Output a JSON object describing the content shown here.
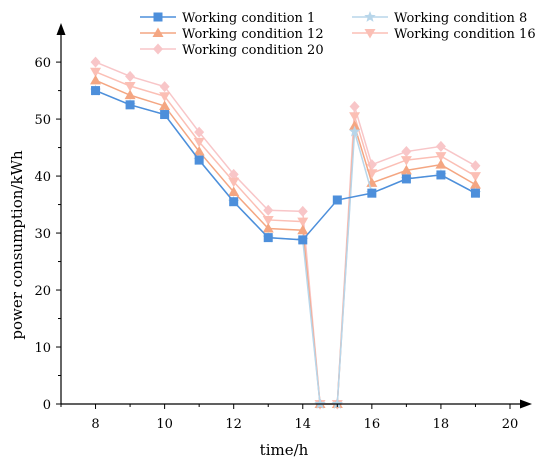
{
  "chart_data": {
    "type": "line",
    "xlabel": "time/h",
    "ylabel": "power consumption/kWh",
    "xlim": [
      7,
      20
    ],
    "ylim": [
      0,
      63
    ],
    "xticks": [
      8,
      10,
      12,
      14,
      16,
      18,
      20
    ],
    "yticks": [
      0,
      10,
      20,
      30,
      40,
      50,
      60
    ],
    "grid": false,
    "legend_position": "top",
    "series": [
      {
        "name": "Working condition 1",
        "color": "#4d8fdb",
        "marker": "square",
        "points": [
          [
            8,
            55
          ],
          [
            9,
            52.5
          ],
          [
            10,
            50.8
          ],
          [
            11,
            42.8
          ],
          [
            12,
            35.5
          ],
          [
            13,
            29.2
          ],
          [
            14,
            28.8
          ],
          [
            15,
            35.8
          ],
          [
            16,
            37
          ],
          [
            17,
            39.5
          ],
          [
            18,
            40.2
          ],
          [
            19,
            37
          ]
        ]
      },
      {
        "name": "Working condition 8",
        "color": "#b8d6ea",
        "marker": "star",
        "points": [
          [
            8,
            55
          ],
          [
            9,
            52.5
          ],
          [
            10,
            50.8
          ],
          [
            11,
            42.8
          ],
          [
            12,
            35.5
          ],
          [
            13,
            29.2
          ],
          [
            14,
            28.8
          ],
          [
            14.5,
            0
          ],
          [
            15,
            0
          ],
          [
            15.5,
            47.8
          ],
          [
            16,
            37
          ],
          [
            17,
            39.5
          ],
          [
            18,
            40.2
          ],
          [
            19,
            37
          ]
        ]
      },
      {
        "name": "Working condition 12",
        "color": "#f4a682",
        "marker": "triangle-up",
        "points": [
          [
            8,
            56.8
          ],
          [
            9,
            54.2
          ],
          [
            10,
            52.3
          ],
          [
            11,
            44.3
          ],
          [
            12,
            37.2
          ],
          [
            13,
            30.8
          ],
          [
            14,
            30.5
          ],
          [
            14.5,
            0
          ],
          [
            15,
            0
          ],
          [
            15.5,
            48.8
          ],
          [
            16,
            38.8
          ],
          [
            17,
            41
          ],
          [
            18,
            42
          ],
          [
            19,
            38.5
          ]
        ]
      },
      {
        "name": "Working condition 16",
        "color": "#fbbfb5",
        "marker": "triangle-down",
        "points": [
          [
            8,
            58.3
          ],
          [
            9,
            55.8
          ],
          [
            10,
            54
          ],
          [
            11,
            46
          ],
          [
            12,
            39
          ],
          [
            13,
            32.3
          ],
          [
            14,
            32
          ],
          [
            14.5,
            0
          ],
          [
            15,
            0
          ],
          [
            15.5,
            50.5
          ],
          [
            16,
            40.5
          ],
          [
            17,
            42.8
          ],
          [
            18,
            43.5
          ],
          [
            19,
            40
          ]
        ]
      },
      {
        "name": "Working condition 20",
        "color": "#f8c6c8",
        "marker": "diamond",
        "points": [
          [
            8,
            60
          ],
          [
            9,
            57.5
          ],
          [
            10,
            55.7
          ],
          [
            11,
            47.7
          ],
          [
            12,
            40.3
          ],
          [
            13,
            34
          ],
          [
            14,
            33.8
          ],
          [
            14.5,
            0
          ],
          [
            15,
            0
          ],
          [
            15.5,
            52.2
          ],
          [
            16,
            42
          ],
          [
            17,
            44.3
          ],
          [
            18,
            45.2
          ],
          [
            19,
            41.8
          ]
        ]
      }
    ]
  }
}
